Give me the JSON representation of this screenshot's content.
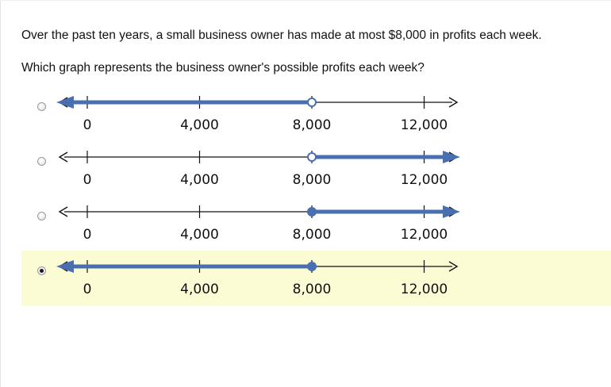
{
  "question": {
    "stem": "Over the past ten years, a small business owner has made at most $8,000 in profits each week.",
    "prompt": "Which graph represents the business owner's possible profits each week?"
  },
  "axis": {
    "ticks": [
      0,
      4000,
      8000,
      12000
    ],
    "tick_labels": [
      "0",
      "4,000",
      "8,000",
      "12,000"
    ]
  },
  "colors": {
    "shade": "#4a6fb0",
    "line": "#111111",
    "selected_bg": "#fcfcd4"
  },
  "options": [
    {
      "boundary": 8000,
      "endpoint": "open",
      "direction": "left",
      "selected": false
    },
    {
      "boundary": 8000,
      "endpoint": "open",
      "direction": "right",
      "selected": false
    },
    {
      "boundary": 8000,
      "endpoint": "closed",
      "direction": "right",
      "selected": false
    },
    {
      "boundary": 8000,
      "endpoint": "closed",
      "direction": "left",
      "selected": true
    }
  ]
}
